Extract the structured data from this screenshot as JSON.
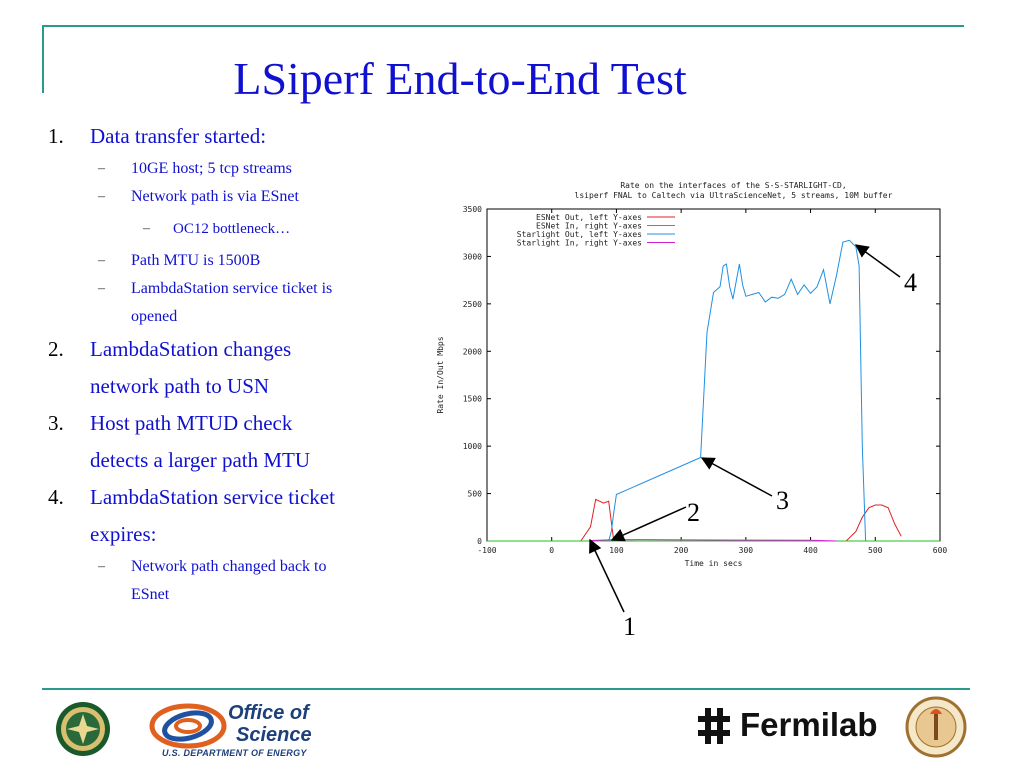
{
  "slide": {
    "title": "LSiperf End-to-End Test",
    "accent_color": "#1010d0",
    "rule_color": "#2a9a8c"
  },
  "bullets": [
    {
      "level": 1,
      "num": "1.",
      "text": "Data transfer started:"
    },
    {
      "level": 2,
      "text": "10GE host; 5 tcp streams"
    },
    {
      "level": 2,
      "text": "Network path is via ESnet"
    },
    {
      "level": 3,
      "text": "OC12 bottleneck…"
    },
    {
      "level": 2,
      "text": "Path MTU is 1500B"
    },
    {
      "level": 2,
      "text": "LambdaStation service ticket is"
    },
    {
      "level": 2,
      "text": "opened",
      "continuation": true
    },
    {
      "level": 1,
      "num": "2.",
      "text": "LambdaStation changes"
    },
    {
      "level": 1,
      "text": "network path to USN",
      "continuation": true
    },
    {
      "level": 1,
      "num": "3.",
      "text": "Host path MTUD check"
    },
    {
      "level": 1,
      "text": "detects a larger path MTU",
      "continuation": true
    },
    {
      "level": 1,
      "num": "4.",
      "text": "LambdaStation service ticket"
    },
    {
      "level": 1,
      "text": "expires:",
      "continuation": true
    },
    {
      "level": 2,
      "text": "Network path changed back to"
    },
    {
      "level": 2,
      "text": "ESnet",
      "continuation": true
    }
  ],
  "chart_data": {
    "type": "line",
    "title_lines": [
      "Rate on the interfaces of the S-S-STARLIGHT-CD,",
      "lsiperf  FNAL to Caltech  via UltraScienceNet, 5 streams, 10M buffer"
    ],
    "xlabel": "Time in secs",
    "ylabel": "Rate In/Out Mbps",
    "xlim": [
      -100,
      600
    ],
    "ylim": [
      0,
      3500
    ],
    "x_ticks": [
      -100,
      0,
      100,
      200,
      300,
      400,
      500,
      600
    ],
    "y_ticks": [
      0,
      500,
      1000,
      1500,
      2000,
      2500,
      3000,
      3500
    ],
    "legend_position": "top-left",
    "series": [
      {
        "name": "ESNet Out, left Y-axes",
        "color": "#e02020",
        "x": [
          45,
          60,
          68,
          80,
          88,
          92,
          96,
          455,
          470,
          480,
          490,
          500,
          510,
          520,
          530,
          540
        ],
        "y": [
          0,
          150,
          440,
          400,
          420,
          200,
          0,
          0,
          100,
          250,
          350,
          380,
          380,
          350,
          180,
          50
        ]
      },
      {
        "name": "ESNet In, right Y-axes",
        "color": "#20c020",
        "x": [
          -100,
          600
        ],
        "y": [
          0,
          0
        ]
      },
      {
        "name": "Starlight Out, left Y-axes",
        "color": "#2090e0",
        "x": [
          88,
          92,
          96,
          100,
          230,
          240,
          250,
          260,
          265,
          270,
          275,
          280,
          290,
          295,
          300,
          310,
          320,
          330,
          340,
          350,
          360,
          370,
          380,
          390,
          400,
          410,
          420,
          430,
          440,
          450,
          460,
          470,
          475,
          480,
          485
        ],
        "y": [
          0,
          100,
          300,
          490,
          880,
          2200,
          2620,
          2680,
          2900,
          2920,
          2680,
          2550,
          2920,
          2700,
          2580,
          2600,
          2620,
          2520,
          2570,
          2560,
          2600,
          2760,
          2600,
          2700,
          2610,
          2680,
          2860,
          2500,
          2800,
          3150,
          3170,
          3100,
          2900,
          1000,
          0
        ]
      },
      {
        "name": "Starlight In, right Y-axes",
        "color": "#d020d0",
        "x": [
          60,
          100,
          200,
          300,
          400,
          440
        ],
        "y": [
          5,
          15,
          12,
          10,
          8,
          0
        ]
      }
    ]
  },
  "callouts": [
    "1",
    "2",
    "3",
    "4"
  ],
  "logos": {
    "office_line1": "Office of",
    "office_line2": "Science",
    "office_line3": "U.S. DEPARTMENT OF ENERGY",
    "fermilab": "Fermilab"
  }
}
